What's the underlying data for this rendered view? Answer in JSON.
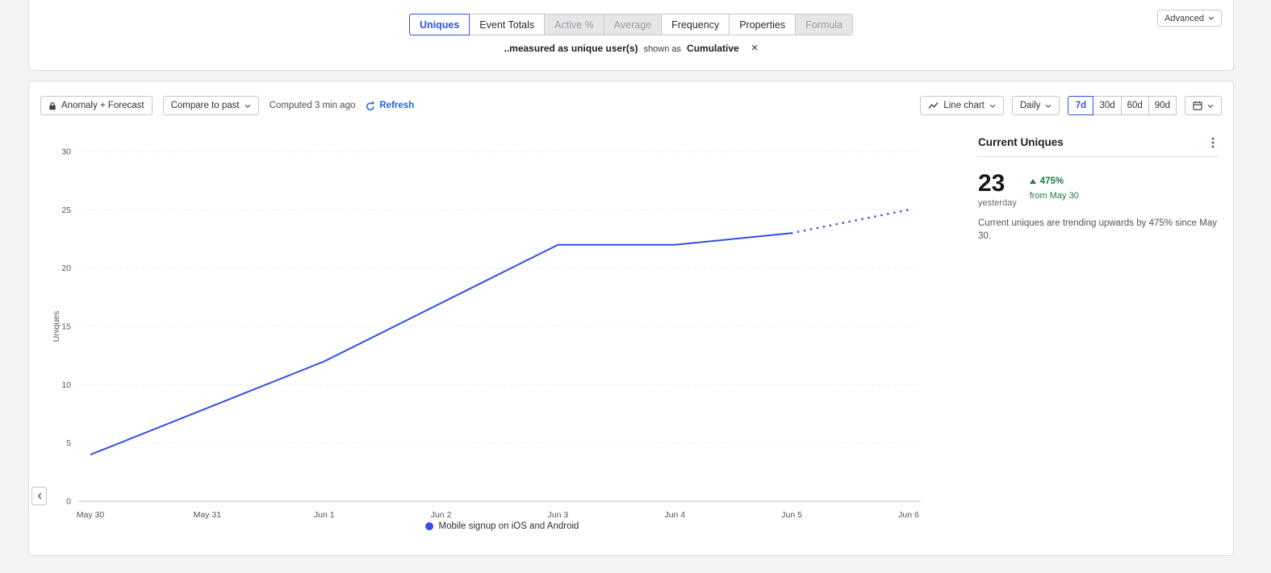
{
  "colors": {
    "accent_blue": "#2f54e0",
    "link_blue": "#1d63e8",
    "positive_green": "#1f7c3d",
    "line_blue": "#3450e3",
    "grid_gray": "#d8d8de"
  },
  "tabs_bar": {
    "tabs": [
      {
        "label": "Uniques",
        "state": "selected"
      },
      {
        "label": "Event Totals",
        "state": "normal"
      },
      {
        "label": "Active %",
        "state": "disabled"
      },
      {
        "label": "Average",
        "state": "disabled"
      },
      {
        "label": "Frequency",
        "state": "normal"
      },
      {
        "label": "Properties",
        "state": "normal"
      },
      {
        "label": "Formula",
        "state": "disabled"
      }
    ],
    "advanced_label": "Advanced",
    "subtitle": {
      "measured": "..measured as unique user(s)",
      "shown_as": "shown as",
      "mode": "Cumulative",
      "close": "×"
    }
  },
  "toolbar": {
    "anomaly_button": "Anomaly + Forecast",
    "compare_button": "Compare to past",
    "computed_text": "Computed 3 min ago",
    "refresh_label": "Refresh",
    "chart_type_button": "Line chart",
    "granularity_button": "Daily",
    "ranges": [
      "7d",
      "30d",
      "60d",
      "90d"
    ],
    "selected_range": "7d"
  },
  "chart_data": {
    "type": "line",
    "title": "",
    "xlabel": "",
    "ylabel": "Uniques",
    "x": [
      "May 30",
      "May 31",
      "Jun 1",
      "Jun 2",
      "Jun 3",
      "Jun 4",
      "Jun 5",
      "Jun 6"
    ],
    "ylim": [
      0,
      30
    ],
    "yticks": [
      0,
      5,
      10,
      15,
      20,
      25,
      30
    ],
    "grid": "dotted-horizontal",
    "legend_position": "bottom-center",
    "series": [
      {
        "name": "Mobile signup on iOS and Android",
        "color": "#3450e3",
        "values": [
          4,
          8,
          12,
          17,
          22,
          22,
          23
        ],
        "forecast": [
          null,
          null,
          null,
          null,
          null,
          null,
          23,
          25
        ]
      }
    ]
  },
  "side_panel": {
    "title": "Current Uniques",
    "value": "23",
    "value_caption": "yesterday",
    "delta": "475%",
    "delta_caption": "from May 30",
    "description": "Current uniques are trending upwards by 475% since May 30."
  }
}
